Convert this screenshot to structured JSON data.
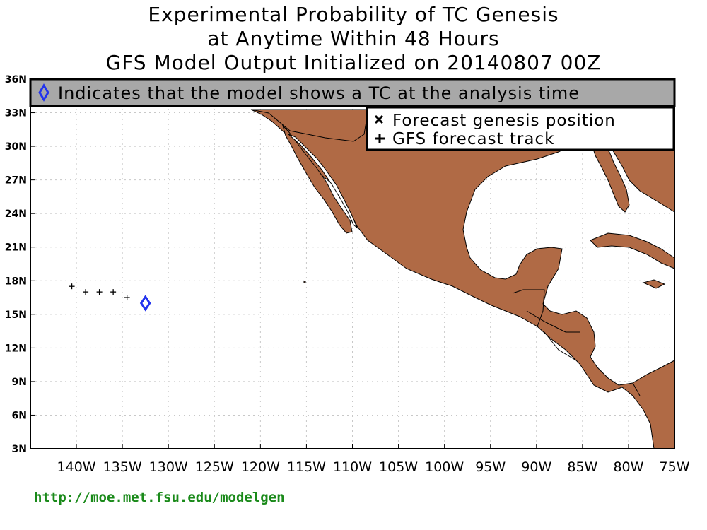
{
  "title": {
    "line1": "Experimental Probability of TC Genesis",
    "line2": "at Anytime Within 48 Hours",
    "line3": "GFS Model Output Initialized on 20140807 00Z"
  },
  "banner": {
    "text": "Indicates that the model shows a TC at the analysis time",
    "icon": "diamond-icon",
    "color": "#a8a8a8"
  },
  "legend": {
    "genesis_label": "Forecast genesis position",
    "track_label": "GFS forecast track"
  },
  "axes": {
    "y_ticks": [
      "36N",
      "33N",
      "30N",
      "27N",
      "24N",
      "21N",
      "18N",
      "15N",
      "12N",
      "9N",
      "6N",
      "3N"
    ],
    "x_ticks": [
      "140W",
      "135W",
      "130W",
      "125W",
      "120W",
      "115W",
      "110W",
      "105W",
      "100W",
      "95W",
      "90W",
      "85W",
      "80W",
      "75W"
    ]
  },
  "map": {
    "lon_range": [
      -145,
      -75
    ],
    "lat_range": [
      3,
      36
    ],
    "land_color": "#b06a45",
    "track_points": [
      [
        -140.5,
        17.5
      ],
      [
        -139,
        17
      ],
      [
        -137.5,
        17
      ],
      [
        -136,
        17
      ],
      [
        -134.5,
        16.5
      ]
    ],
    "analysis_tc": [
      -132.5,
      16
    ],
    "diamond_color": "#2233ee"
  },
  "footer": {
    "url": "http://moe.met.fsu.edu/modelgen"
  }
}
